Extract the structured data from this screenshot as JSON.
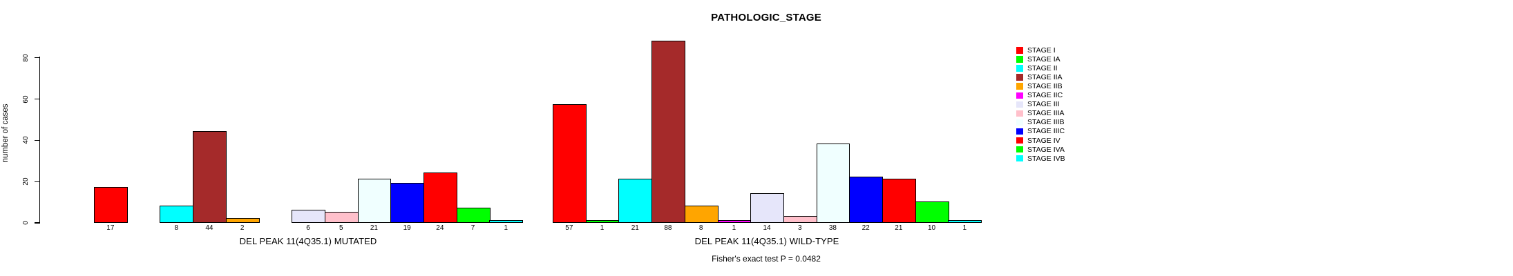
{
  "title": "PATHOLOGIC_STAGE",
  "footer": "Fisher's exact test P = 0.0482",
  "chart_data": {
    "type": "bar",
    "title": "PATHOLOGIC_STAGE",
    "ylabel": "number of cases",
    "ylim": [
      0,
      88
    ],
    "yticks": [
      0,
      20,
      40,
      60,
      80
    ],
    "grid": false,
    "legend_position": "right",
    "bar_borders": "black",
    "categories": [
      "STAGE I",
      "STAGE IA",
      "STAGE II",
      "STAGE IIA",
      "STAGE IIB",
      "STAGE IIC",
      "STAGE III",
      "STAGE IIIA",
      "STAGE IIIB",
      "STAGE IIIC",
      "STAGE IV",
      "STAGE IVA",
      "STAGE IVB"
    ],
    "colors": [
      "#FF0000",
      "#00FF00",
      "#00FFFF",
      "#A52A2A",
      "#FFA500",
      "#FF00FF",
      "#E6E6FA",
      "#FFC0CB",
      "#F0FFFF",
      "#0000FF",
      "#FF0000",
      "#00FF00",
      "#00FFFF"
    ],
    "panels": [
      {
        "xlabel": "DEL PEAK 11(4Q35.1) MUTATED",
        "values": [
          17,
          0,
          8,
          44,
          2,
          0,
          6,
          5,
          21,
          19,
          24,
          7,
          1
        ]
      },
      {
        "xlabel": "DEL PEAK 11(4Q35.1) WILD-TYPE",
        "values": [
          57,
          1,
          21,
          88,
          8,
          1,
          14,
          3,
          38,
          22,
          21,
          10,
          1
        ]
      }
    ],
    "bar_value_labels_shown_for_zero": false,
    "annotation": "Fisher's exact test P = 0.0482"
  }
}
